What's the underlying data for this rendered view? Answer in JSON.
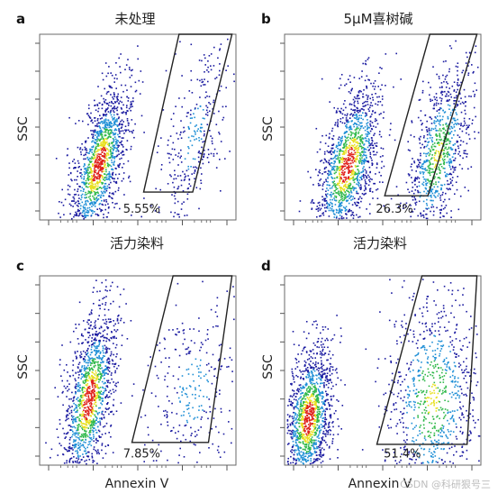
{
  "chart_data": [
    {
      "type": "scatter",
      "panel": "a",
      "title": "未处理",
      "ylabel": "SSC",
      "xlabel": "活力染料",
      "gate_percent": "5.55%",
      "populations": [
        {
          "center_x": 0.3,
          "center_y": 0.3,
          "spread_x": 0.06,
          "spread_y": 0.22,
          "tilt": 0.45,
          "density": "high",
          "weight": 0.94
        },
        {
          "center_x": 0.78,
          "center_y": 0.45,
          "spread_x": 0.07,
          "spread_y": 0.28,
          "tilt": 0.4,
          "density": "low",
          "weight": 0.06
        }
      ]
    },
    {
      "type": "scatter",
      "panel": "b",
      "title": "5μM喜树碱",
      "ylabel": "SSC",
      "xlabel": "活力染料",
      "gate_percent": "26.3%",
      "populations": [
        {
          "center_x": 0.32,
          "center_y": 0.3,
          "spread_x": 0.07,
          "spread_y": 0.22,
          "tilt": 0.45,
          "density": "high",
          "weight": 0.74
        },
        {
          "center_x": 0.78,
          "center_y": 0.35,
          "spread_x": 0.07,
          "spread_y": 0.25,
          "tilt": 0.4,
          "density": "medium",
          "weight": 0.26
        }
      ]
    },
    {
      "type": "scatter",
      "panel": "c",
      "title": "",
      "ylabel": "SSC",
      "xlabel": "Annexin V",
      "gate_percent": "7.85%",
      "populations": [
        {
          "center_x": 0.25,
          "center_y": 0.35,
          "spread_x": 0.06,
          "spread_y": 0.24,
          "tilt": 0.3,
          "density": "high",
          "weight": 0.92
        },
        {
          "center_x": 0.78,
          "center_y": 0.4,
          "spread_x": 0.12,
          "spread_y": 0.28,
          "tilt": 0.2,
          "density": "low",
          "weight": 0.08
        }
      ]
    },
    {
      "type": "scatter",
      "panel": "d",
      "title": "",
      "ylabel": "SSC",
      "xlabel": "Annexin V",
      "gate_percent": "51.4%",
      "populations": [
        {
          "center_x": 0.12,
          "center_y": 0.25,
          "spread_x": 0.06,
          "spread_y": 0.2,
          "tilt": 0.2,
          "density": "high",
          "weight": 0.49
        },
        {
          "center_x": 0.75,
          "center_y": 0.35,
          "spread_x": 0.12,
          "spread_y": 0.3,
          "tilt": 0.1,
          "density": "medium",
          "weight": 0.51
        }
      ]
    }
  ],
  "watermark": "CSDN @科研狠号三",
  "colors": {
    "low": "#1a1aa0",
    "mid": "#1f8fd6",
    "high_green": "#2fb84a",
    "high_yellow": "#e8e020",
    "peak": "#e0201a",
    "frame": "#6a6a6a",
    "gate": "#222222"
  }
}
